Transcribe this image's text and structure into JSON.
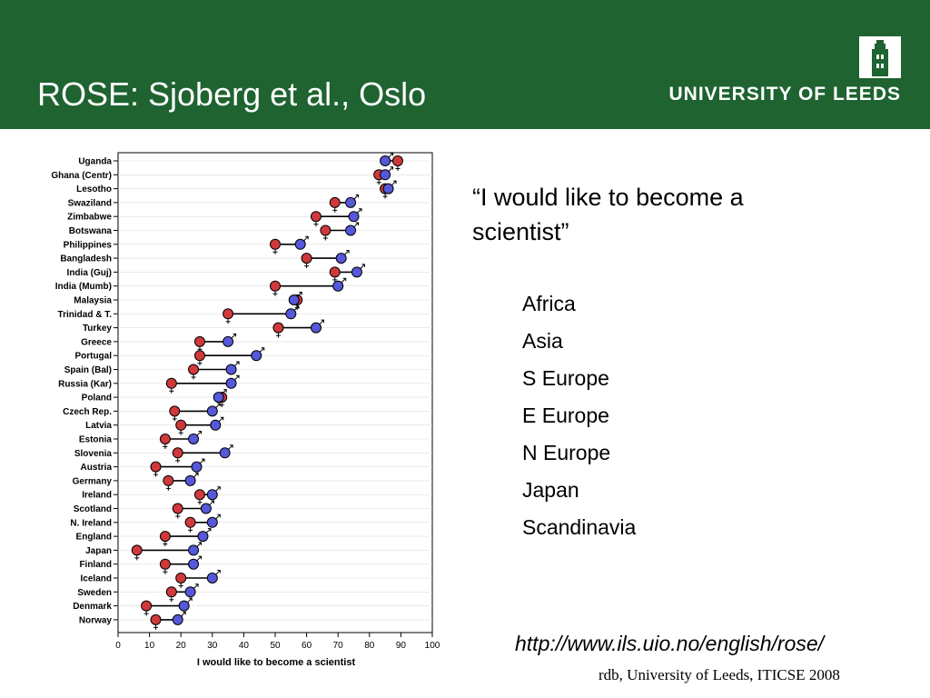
{
  "slide": {
    "title": "ROSE: Sjoberg et al., Oslo",
    "logo_text": "UNIVERSITY OF LEEDS",
    "quote": "“I would like to become a scientist”",
    "regions": [
      "Africa",
      "Asia",
      "S Europe",
      "E Europe",
      "N Europe",
      "Japan",
      "Scandinavia"
    ],
    "url": "http://www.ils.uio.no/english/rose/",
    "credit": "rdb, University of Leeds, ITICSE 2008"
  },
  "colors": {
    "header": "#1e6330",
    "female": "#d0393c",
    "male": "#5558d8"
  },
  "icons": {
    "logo": "university-tower-icon",
    "female": "female-symbol-icon",
    "male": "male-symbol-icon"
  },
  "chart_data": {
    "type": "dot",
    "xlabel": "I would like to become a scientist",
    "xlim": [
      0,
      100
    ],
    "xticks": [
      0,
      10,
      20,
      30,
      40,
      50,
      60,
      70,
      80,
      90,
      100
    ],
    "categories": [
      "Uganda",
      "Ghana (Centr)",
      "Lesotho",
      "Swaziland",
      "Zimbabwe",
      "Botswana",
      "Philippines",
      "Bangladesh",
      "India (Guj)",
      "India (Mumb)",
      "Malaysia",
      "Trinidad & T.",
      "Turkey",
      "Greece",
      "Portugal",
      "Spain (Bal)",
      "Russia (Kar)",
      "Poland",
      "Czech Rep.",
      "Latvia",
      "Estonia",
      "Slovenia",
      "Austria",
      "Germany",
      "Ireland",
      "Scotland",
      "N. Ireland",
      "England",
      "Japan",
      "Finland",
      "Iceland",
      "Sweden",
      "Denmark",
      "Norway"
    ],
    "series": [
      {
        "name": "",
        "values": [
          89,
          83,
          85,
          69,
          63,
          66,
          50,
          60,
          69,
          50,
          57,
          35,
          51,
          26,
          26,
          24,
          17,
          33,
          18,
          20,
          15,
          19,
          12,
          16,
          26,
          19,
          23,
          15,
          6,
          15,
          20,
          17,
          9,
          12
        ]
      },
      {
        "name": "",
        "values": [
          85,
          85,
          86,
          74,
          75,
          74,
          58,
          71,
          76,
          70,
          56,
          55,
          63,
          35,
          44,
          36,
          36,
          32,
          30,
          31,
          24,
          34,
          25,
          23,
          30,
          28,
          30,
          27,
          24,
          24,
          30,
          23,
          21,
          19
        ]
      }
    ]
  }
}
